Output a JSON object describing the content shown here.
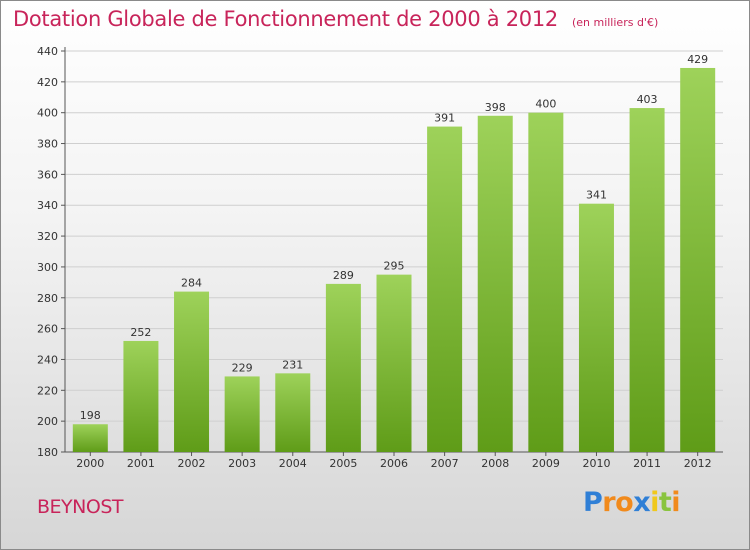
{
  "title": "Dotation Globale de Fonctionnement de 2000 à 2012",
  "unit_note": "(en milliers d'€)",
  "city": "BEYNOST",
  "logo": {
    "text": "Proxiti",
    "letter_colors": [
      "#2f7fd6",
      "#f18a1c",
      "#f18a1c",
      "#2f7fd6",
      "#f0c81c",
      "#8ac43f",
      "#f18a1c"
    ]
  },
  "colors": {
    "accent": "#c8245a",
    "bar_light": "#9ed25a",
    "bar_dark": "#5f9c18",
    "grid": "#cfcfcf"
  },
  "chart_data": {
    "type": "bar",
    "categories": [
      "2000",
      "2001",
      "2002",
      "2003",
      "2004",
      "2005",
      "2006",
      "2007",
      "2008",
      "2009",
      "2010",
      "2011",
      "2012"
    ],
    "values": [
      198,
      252,
      284,
      229,
      231,
      289,
      295,
      391,
      398,
      400,
      341,
      403,
      429
    ],
    "ylim": [
      180,
      440
    ],
    "yticks": [
      180,
      200,
      220,
      240,
      260,
      280,
      300,
      320,
      340,
      360,
      380,
      400,
      420,
      440
    ],
    "grid": true,
    "xlabel": "",
    "ylabel": ""
  }
}
